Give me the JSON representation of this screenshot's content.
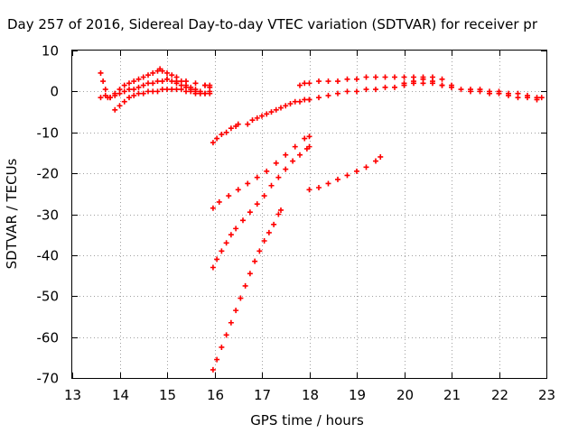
{
  "chart_data": {
    "type": "scatter",
    "title": "Day 257 of 2016, Sidereal Day-to-day VTEC variation (SDTVAR) for receiver pr",
    "xlabel": "GPS time / hours",
    "ylabel": "SDTVAR / TECUs",
    "xlim": [
      13,
      23
    ],
    "ylim": [
      -70,
      10
    ],
    "xticks": [
      "13",
      "14",
      "15",
      "16",
      "17",
      "18",
      "19",
      "20",
      "21",
      "22",
      "23"
    ],
    "yticks": [
      "10",
      "0",
      "-10",
      "-20",
      "-30",
      "-40",
      "-50",
      "-60",
      "-70"
    ],
    "grid": true,
    "marker": "plus",
    "marker_color": "#ff0000",
    "series": [
      {
        "x": [
          13.6,
          13.65,
          13.7,
          13.75,
          13.8,
          13.9,
          14.0,
          14.1,
          14.2,
          14.3,
          14.4,
          14.5,
          14.6,
          14.7,
          14.8,
          14.85,
          14.9,
          15.0,
          15.1,
          15.2,
          15.3,
          15.4,
          15.5,
          15.6,
          15.7,
          15.8,
          15.9
        ],
        "y": [
          4.5,
          2.5,
          0.5,
          -1.5,
          -1.5,
          -0.5,
          0.5,
          1.5,
          2.0,
          2.5,
          3.0,
          3.5,
          4.0,
          4.5,
          5.0,
          5.5,
          5.0,
          4.5,
          4.0,
          3.5,
          2.5,
          1.5,
          1.0,
          0.5,
          0.0,
          1.5,
          1.0
        ]
      },
      {
        "x": [
          13.6,
          13.7,
          13.8,
          13.9,
          14.0,
          14.1,
          14.2,
          14.3,
          14.4,
          14.5,
          14.6,
          14.7,
          14.8,
          14.9,
          15.0,
          15.1,
          15.2,
          15.3,
          15.4,
          15.5,
          15.6,
          15.7,
          15.8,
          15.9
        ],
        "y": [
          -1.5,
          -1.0,
          -1.5,
          -1.0,
          -0.5,
          0.0,
          0.5,
          0.5,
          1.0,
          1.5,
          2.0,
          2.0,
          2.5,
          2.5,
          3.0,
          2.5,
          2.0,
          1.5,
          1.0,
          0.5,
          0.0,
          -0.5,
          -0.5,
          -0.5
        ]
      },
      {
        "x": [
          13.9,
          14.0,
          14.1,
          14.2,
          14.3,
          14.4,
          14.5,
          14.6,
          14.7,
          14.8,
          14.9,
          15.0,
          15.1,
          15.2,
          15.3,
          15.4,
          15.5,
          15.6,
          15.7,
          15.8,
          15.9
        ],
        "y": [
          -4.5,
          -3.5,
          -2.5,
          -1.5,
          -1.0,
          -0.5,
          -0.5,
          0.0,
          0.0,
          0.0,
          0.5,
          0.5,
          0.5,
          0.5,
          0.5,
          0.0,
          0.0,
          -0.5,
          -0.5,
          -0.5,
          0.0
        ]
      },
      {
        "x": [
          15.0,
          15.2,
          15.4,
          15.6,
          15.8,
          15.9
        ],
        "y": [
          3.0,
          2.5,
          2.5,
          2.0,
          1.5,
          1.5
        ]
      },
      {
        "x": [
          15.97,
          16.05,
          16.15,
          16.25,
          16.35,
          16.45,
          16.5
        ],
        "y": [
          -12.5,
          -11.5,
          -10.5,
          -10.0,
          -9.0,
          -8.5,
          -8.0
        ]
      },
      {
        "x": [
          16.7,
          16.8,
          16.9,
          17.0,
          17.1,
          17.2,
          17.3,
          17.4,
          17.5,
          17.6,
          17.7,
          17.8,
          17.9,
          18.0
        ],
        "y": [
          -8.0,
          -7.0,
          -6.5,
          -6.0,
          -5.5,
          -5.0,
          -4.5,
          -4.0,
          -3.5,
          -3.0,
          -2.5,
          -2.5,
          -2.0,
          -2.0
        ]
      },
      {
        "x": [
          18.0,
          18.2,
          18.4,
          18.6,
          18.8,
          19.0,
          19.2,
          19.4,
          19.6,
          19.8,
          20.0,
          20.2,
          20.4,
          20.6,
          20.8,
          21.0
        ],
        "y": [
          -2.0,
          -1.5,
          -1.0,
          -0.5,
          0.0,
          0.0,
          0.5,
          0.5,
          1.0,
          1.0,
          1.5,
          2.0,
          2.0,
          2.0,
          1.5,
          1.5
        ]
      },
      {
        "x": [
          17.8,
          17.9,
          18.0,
          18.2,
          18.4,
          18.6,
          18.8,
          19.0,
          19.2,
          19.4,
          19.6,
          19.8,
          20.0,
          20.2,
          20.4,
          20.6,
          20.8
        ],
        "y": [
          1.5,
          2.0,
          2.0,
          2.5,
          2.5,
          2.5,
          3.0,
          3.0,
          3.5,
          3.5,
          3.5,
          3.5,
          3.5,
          3.5,
          3.5,
          3.5,
          3.0
        ]
      },
      {
        "x": [
          20.0,
          20.2,
          20.4,
          20.6,
          20.8,
          21.0,
          21.2,
          21.4,
          21.6,
          21.8,
          22.0,
          22.2,
          22.4,
          22.6,
          22.8,
          22.9
        ],
        "y": [
          2.0,
          2.5,
          3.0,
          2.5,
          1.5,
          1.0,
          0.5,
          0.5,
          0.5,
          0.0,
          0.0,
          -0.5,
          -0.5,
          -1.0,
          -1.5,
          -1.5
        ]
      },
      {
        "x": [
          21.4,
          21.6,
          21.8,
          22.0,
          22.2,
          22.4,
          22.6,
          22.8
        ],
        "y": [
          0.0,
          0.0,
          -0.5,
          -0.5,
          -1.0,
          -1.5,
          -1.5,
          -2.0
        ]
      },
      {
        "x": [
          15.97,
          16.1,
          16.3,
          16.5,
          16.7,
          16.9,
          17.1,
          17.3,
          17.5,
          17.7,
          17.9,
          18.0
        ],
        "y": [
          -28.5,
          -27.0,
          -25.5,
          -24.0,
          -22.5,
          -21.0,
          -19.5,
          -17.5,
          -15.5,
          -13.5,
          -11.5,
          -11.0
        ]
      },
      {
        "x": [
          15.97,
          16.05,
          16.15,
          16.25,
          16.35,
          16.45,
          16.6,
          16.75,
          16.9,
          17.05,
          17.2,
          17.35,
          17.5,
          17.65,
          17.8,
          17.95,
          18.0
        ],
        "y": [
          -43.0,
          -41.0,
          -39.0,
          -37.0,
          -35.0,
          -33.5,
          -31.5,
          -29.5,
          -27.5,
          -25.5,
          -23.0,
          -21.0,
          -19.0,
          -17.0,
          -15.5,
          -14.0,
          -13.5
        ]
      },
      {
        "x": [
          18.0,
          18.2,
          18.4,
          18.6,
          18.8,
          19.0,
          19.2,
          19.4,
          19.5
        ],
        "y": [
          -24.0,
          -23.5,
          -22.5,
          -21.5,
          -20.5,
          -19.5,
          -18.5,
          -17.0,
          -16.0
        ]
      },
      {
        "x": [
          15.97,
          16.05,
          16.15,
          16.25,
          16.35,
          16.45,
          16.55,
          16.65,
          16.75,
          16.85,
          16.95,
          17.05,
          17.15,
          17.25,
          17.35,
          17.4
        ],
        "y": [
          -68.0,
          -65.5,
          -62.5,
          -59.5,
          -56.5,
          -53.5,
          -50.5,
          -47.5,
          -44.5,
          -41.5,
          -39.0,
          -36.5,
          -34.5,
          -32.5,
          -30.0,
          -29.0
        ]
      }
    ]
  }
}
